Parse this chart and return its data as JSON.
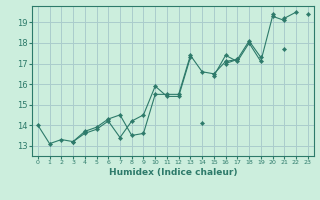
{
  "xlabel": "Humidex (Indice chaleur)",
  "background_color": "#cceedd",
  "grid_color": "#aacccc",
  "line_color": "#2d7a6a",
  "xlim": [
    -0.5,
    23.5
  ],
  "ylim": [
    12.5,
    19.8
  ],
  "xticks": [
    0,
    1,
    2,
    3,
    4,
    5,
    6,
    7,
    8,
    9,
    10,
    11,
    12,
    13,
    14,
    15,
    16,
    17,
    18,
    19,
    20,
    21,
    22,
    23
  ],
  "yticks": [
    13,
    14,
    15,
    16,
    17,
    18,
    19
  ],
  "series": [
    [
      14.0,
      13.1,
      13.3,
      13.2,
      13.6,
      13.8,
      14.2,
      13.4,
      14.2,
      14.5,
      15.9,
      15.4,
      15.4,
      17.3,
      null,
      16.4,
      17.4,
      17.1,
      18.0,
      17.1,
      19.3,
      19.1,
      null,
      null
    ],
    [
      null,
      null,
      null,
      13.2,
      13.7,
      13.9,
      14.3,
      14.5,
      13.5,
      13.6,
      15.5,
      15.5,
      15.5,
      17.4,
      16.6,
      16.5,
      17.1,
      17.2,
      18.1,
      17.3,
      null,
      19.2,
      19.5,
      null
    ],
    [
      null,
      null,
      null,
      null,
      null,
      null,
      null,
      null,
      null,
      null,
      null,
      null,
      null,
      null,
      null,
      null,
      17.0,
      17.2,
      null,
      null,
      null,
      17.7,
      null,
      19.4
    ],
    [
      null,
      null,
      null,
      null,
      null,
      null,
      null,
      null,
      null,
      null,
      null,
      null,
      null,
      null,
      14.1,
      null,
      null,
      null,
      null,
      null,
      19.4,
      null,
      null,
      null
    ]
  ]
}
